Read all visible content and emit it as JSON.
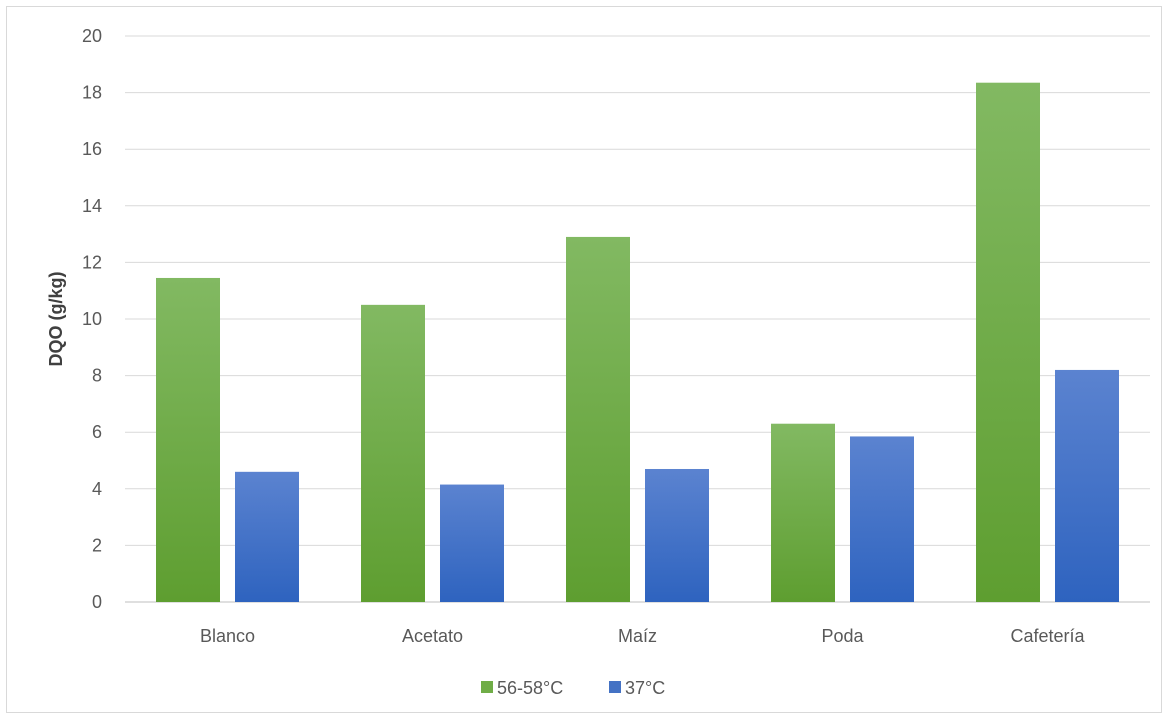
{
  "chart_data": {
    "type": "bar",
    "title": "",
    "xlabel": "",
    "ylabel": "DQO (g/kg)",
    "ylim": [
      0,
      20
    ],
    "yticks": [
      0,
      2,
      4,
      6,
      8,
      10,
      12,
      14,
      16,
      18,
      20
    ],
    "categories": [
      "Blanco",
      "Acetato",
      "Maíz",
      "Poda",
      "Cafetería"
    ],
    "series": [
      {
        "name": "56-58°C",
        "color": "#70ad47",
        "values": [
          11.45,
          10.5,
          12.9,
          6.3,
          18.35
        ]
      },
      {
        "name": "37°C",
        "color": "#4472c4",
        "values": [
          4.6,
          4.15,
          4.7,
          5.85,
          8.2
        ]
      }
    ],
    "grid": true,
    "legend_position": "bottom"
  }
}
